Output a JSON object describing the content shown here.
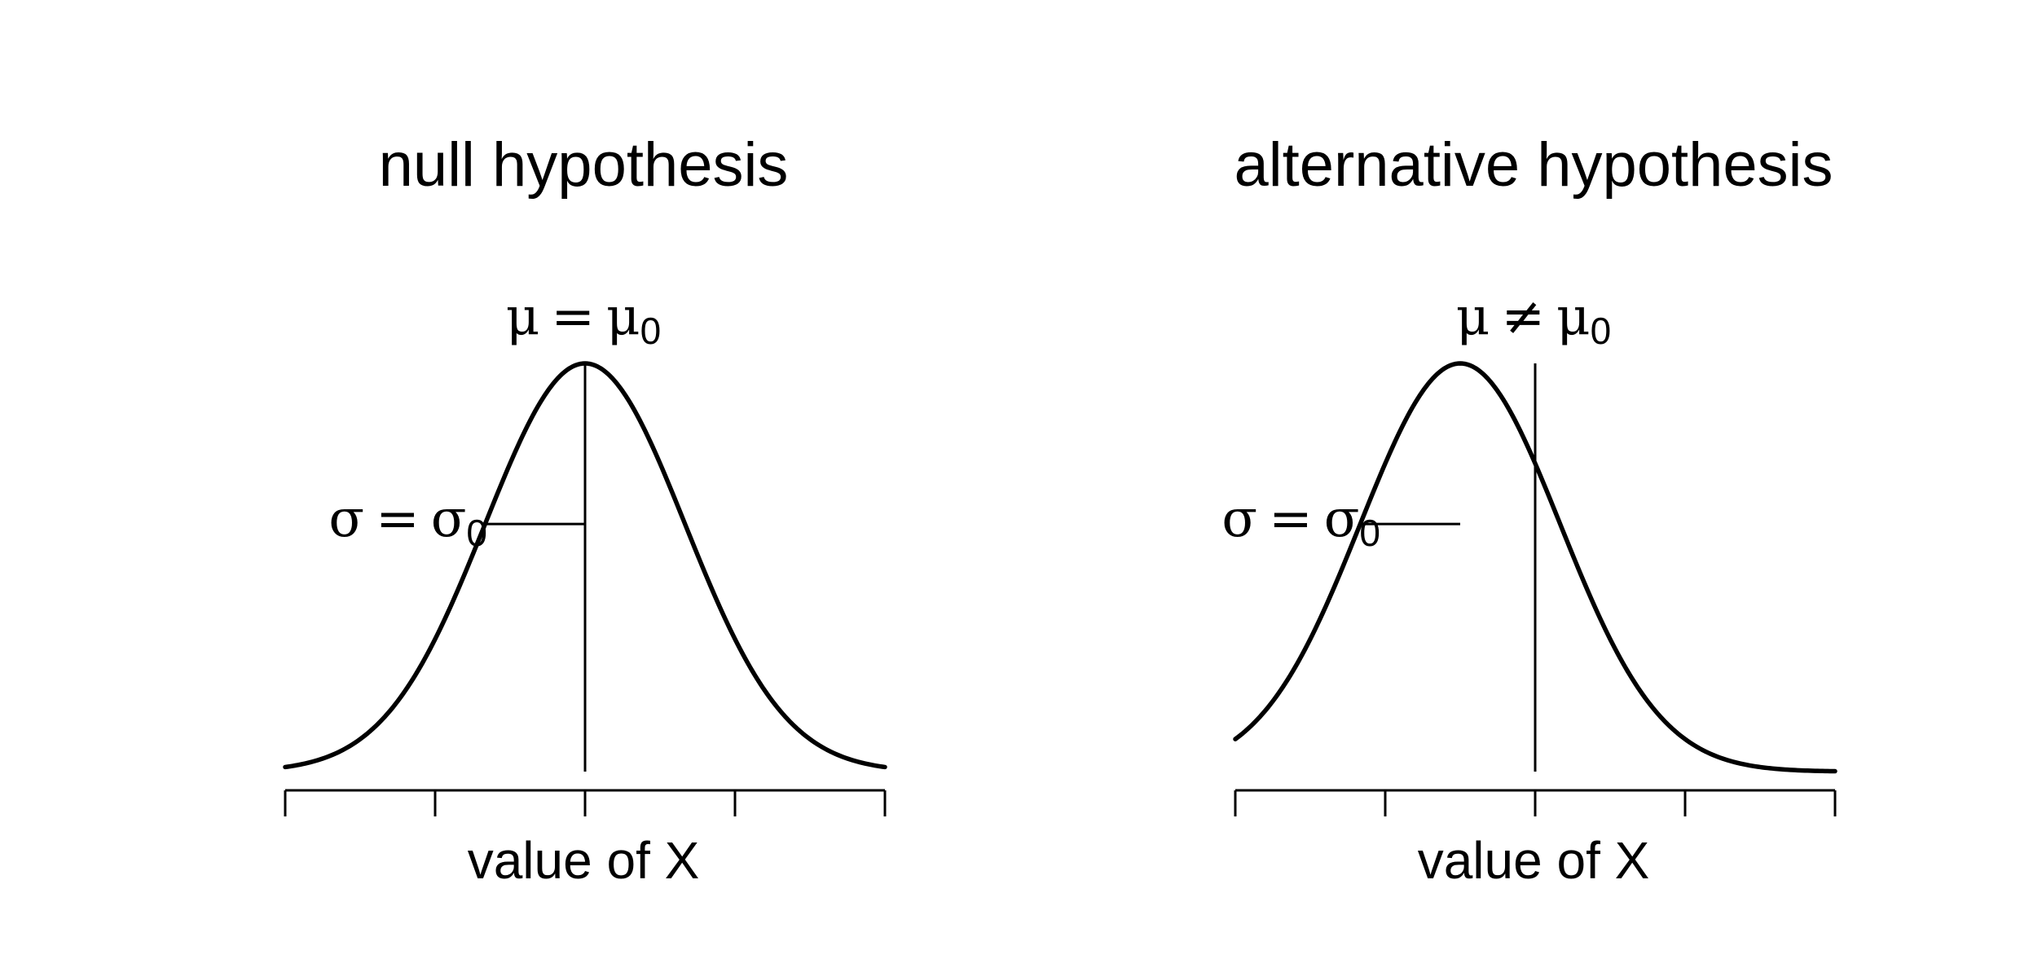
{
  "panels": [
    {
      "title": "null hypothesis",
      "mean_label": {
        "symbol": "μ",
        "relation": "=",
        "rhs": "μ",
        "subscript": "0"
      },
      "sd_label": {
        "symbol": "σ",
        "relation": "=",
        "rhs": "σ",
        "subscript": "0"
      },
      "xlabel": "value of X",
      "curve_center": 0,
      "reference_line": 0
    },
    {
      "title": "alternative hypothesis",
      "mean_label": {
        "symbol": "μ",
        "relation": "≠",
        "rhs": "μ",
        "subscript": "0"
      },
      "sd_label": {
        "symbol": "σ",
        "relation": "=",
        "rhs": "σ",
        "subscript": "0"
      },
      "xlabel": "value of X",
      "curve_center": -0.75,
      "reference_line": 0
    }
  ],
  "axis": {
    "range": [
      -3,
      3
    ],
    "ticks": [
      -3,
      -1.5,
      0,
      1.5,
      3
    ]
  }
}
